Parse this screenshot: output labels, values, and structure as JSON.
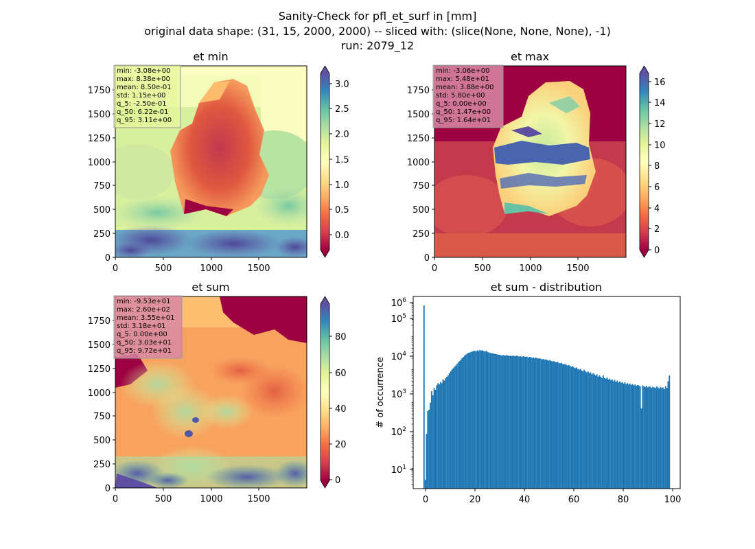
{
  "figure": {
    "title_lines": [
      "Sanity-Check for pfl_et_surf in [mm]",
      "original data shape: (31, 15, 2000, 2000) -- sliced with: (slice(None, None, None), -1)",
      "run: 2079_12"
    ]
  },
  "chart_data": [
    {
      "type": "heatmap",
      "title": "et min",
      "xlim": [
        0,
        2000
      ],
      "ylim": [
        0,
        2000
      ],
      "x_ticks": [
        "0",
        "500",
        "1000",
        "1500"
      ],
      "y_ticks": [
        "0",
        "250",
        "500",
        "750",
        "1000",
        "1250",
        "1500",
        "1750"
      ],
      "colormap": "Spectral",
      "colorbar_range": [
        -0.3,
        3.2
      ],
      "colorbar_ticks": [
        "0.0",
        "0.5",
        "1.0",
        "1.5",
        "2.0",
        "2.5",
        "3.0"
      ],
      "stats_box_color": "#e6f598",
      "stats": [
        "min: -3.08e+00",
        "max: 8.38e+00",
        "mean: 8.50e-01",
        "std: 1.15e+00",
        "q_5: -2.50e-01",
        "q_50: 6.22e-01",
        "q_95: 3.11e+00"
      ]
    },
    {
      "type": "heatmap",
      "title": "et max",
      "xlim": [
        0,
        2000
      ],
      "ylim": [
        0,
        2000
      ],
      "x_ticks": [
        "0",
        "500",
        "1000",
        "1500"
      ],
      "y_ticks": [
        "0",
        "250",
        "500",
        "750",
        "1000",
        "1250",
        "1500",
        "1750"
      ],
      "colormap": "Spectral",
      "colorbar_range": [
        0,
        16.8
      ],
      "colorbar_ticks": [
        "0",
        "2",
        "4",
        "6",
        "8",
        "10",
        "12",
        "14",
        "16"
      ],
      "stats_box_color": "#d88aa4",
      "stats": [
        "min: -3.06e+00",
        "max: 5.48e+01",
        "mean: 3.88e+00",
        "std: 5.80e+00",
        "q_5: 0.00e+00",
        "q_50: 1.47e+00",
        "q_95: 1.64e+01"
      ]
    },
    {
      "type": "heatmap",
      "title": "et sum",
      "xlim": [
        0,
        2000
      ],
      "ylim": [
        0,
        2000
      ],
      "x_ticks": [
        "0",
        "500",
        "1000",
        "1500"
      ],
      "y_ticks": [
        "0",
        "250",
        "500",
        "750",
        "1000",
        "1250",
        "1500",
        "1750"
      ],
      "colormap": "Spectral",
      "colorbar_range": [
        -3,
        99
      ],
      "colorbar_ticks": [
        "0",
        "20",
        "40",
        "60",
        "80"
      ],
      "stats_box_color": "#d88aa4",
      "stats": [
        "min: -9.53e+01",
        "max: 2.60e+02",
        "mean: 3.55e+01",
        "std: 3.18e+01",
        "q_5: 0.00e+00",
        "q_50: 3.03e+01",
        "q_95: 9.72e+01"
      ]
    },
    {
      "type": "bar",
      "title": "et sum - distribution",
      "ylabel": "# of occurrence",
      "yscale": "log",
      "xlim": [
        -4,
        101
      ],
      "ylim": [
        2.2,
        1500000
      ],
      "x_ticks": [
        "0",
        "20",
        "40",
        "60",
        "80",
        "100"
      ],
      "y_ticks": [
        "10^1",
        "10^2",
        "10^3",
        "10^4",
        "10^5",
        "10^6"
      ],
      "color": "#1f77b4",
      "bin_width": 0.5,
      "bins": [
        [
          0,
          800000
        ],
        [
          0.5,
          4
        ],
        [
          1,
          100
        ],
        [
          1.5,
          500
        ],
        [
          2,
          550
        ],
        [
          2.5,
          900
        ],
        [
          3,
          2000
        ],
        [
          3.5,
          1500
        ],
        [
          4,
          2500
        ],
        [
          4.5,
          2200
        ],
        [
          5,
          3000
        ],
        [
          5.5,
          3500
        ],
        [
          6,
          3200
        ],
        [
          6.5,
          3800
        ],
        [
          7,
          3500
        ],
        [
          7.5,
          4500
        ],
        [
          8,
          4200
        ],
        [
          8.5,
          5000
        ],
        [
          9,
          5500
        ],
        [
          9.5,
          6000
        ],
        [
          10,
          7000
        ],
        [
          10.5,
          8000
        ],
        [
          11,
          9000
        ],
        [
          11.5,
          10000
        ],
        [
          12,
          11000
        ],
        [
          12.5,
          12000
        ],
        [
          13,
          13500
        ],
        [
          13.5,
          15000
        ],
        [
          14,
          16500
        ],
        [
          14.5,
          18000
        ],
        [
          15,
          20000
        ],
        [
          15.5,
          22000
        ],
        [
          16,
          24000
        ],
        [
          16.5,
          26000
        ],
        [
          17,
          28000
        ],
        [
          17.5,
          29000
        ],
        [
          18,
          30000
        ],
        [
          18.5,
          31000
        ],
        [
          19,
          32000
        ],
        [
          19.5,
          33000
        ],
        [
          20,
          34000
        ],
        [
          20.5,
          32000
        ],
        [
          21,
          35000
        ],
        [
          21.5,
          33000
        ],
        [
          22,
          36000
        ],
        [
          22.5,
          34000
        ],
        [
          23,
          35000
        ],
        [
          23.5,
          33000
        ],
        [
          24,
          32000
        ],
        [
          24.5,
          34000
        ],
        [
          25,
          31000
        ],
        [
          25.5,
          30000
        ],
        [
          26,
          29000
        ],
        [
          26.5,
          28500
        ],
        [
          27,
          28000
        ],
        [
          27.5,
          27500
        ],
        [
          28,
          27000
        ],
        [
          28.5,
          26500
        ],
        [
          29,
          26000
        ],
        [
          29.5,
          25500
        ],
        [
          30,
          25000
        ],
        [
          30.5,
          24000
        ],
        [
          31,
          25000
        ],
        [
          31.5,
          24500
        ],
        [
          32,
          24000
        ],
        [
          32.5,
          25000
        ],
        [
          33,
          24000
        ],
        [
          33.5,
          23500
        ],
        [
          34,
          24000
        ],
        [
          34.5,
          23000
        ],
        [
          35,
          24000
        ],
        [
          35.5,
          23500
        ],
        [
          36,
          23000
        ],
        [
          36.5,
          24000
        ],
        [
          37,
          23000
        ],
        [
          37.5,
          22500
        ],
        [
          38,
          23000
        ],
        [
          38.5,
          22000
        ],
        [
          39,
          23000
        ],
        [
          39.5,
          22500
        ],
        [
          40,
          22000
        ],
        [
          40.5,
          22500
        ],
        [
          41,
          21000
        ],
        [
          41.5,
          22000
        ],
        [
          42,
          21500
        ],
        [
          42.5,
          20500
        ],
        [
          43,
          21000
        ],
        [
          43.5,
          20000
        ],
        [
          44,
          21000
        ],
        [
          44.5,
          20000
        ],
        [
          45,
          19500
        ],
        [
          45.5,
          20000
        ],
        [
          46,
          19000
        ],
        [
          46.5,
          18500
        ],
        [
          47,
          19000
        ],
        [
          47.5,
          18000
        ],
        [
          48,
          18500
        ],
        [
          48.5,
          17500
        ],
        [
          49,
          17000
        ],
        [
          49.5,
          17500
        ],
        [
          50,
          16500
        ],
        [
          50.5,
          16000
        ],
        [
          51,
          16500
        ],
        [
          51.5,
          15500
        ],
        [
          52,
          15000
        ],
        [
          52.5,
          15500
        ],
        [
          53,
          14500
        ],
        [
          53.5,
          14000
        ],
        [
          54,
          14500
        ],
        [
          54.5,
          13500
        ],
        [
          55,
          13000
        ],
        [
          55.5,
          13500
        ],
        [
          56,
          12500
        ],
        [
          56.5,
          12000
        ],
        [
          57,
          12500
        ],
        [
          57.5,
          11500
        ],
        [
          58,
          11000
        ],
        [
          58.5,
          11500
        ],
        [
          59,
          10500
        ],
        [
          59.5,
          10000
        ],
        [
          60,
          10500
        ],
        [
          60.5,
          9500
        ],
        [
          61,
          9000
        ],
        [
          61.5,
          9500
        ],
        [
          62,
          8500
        ],
        [
          62.5,
          8000
        ],
        [
          63,
          9000
        ],
        [
          63.5,
          8000
        ],
        [
          64,
          7500
        ],
        [
          64.5,
          8000
        ],
        [
          65,
          7000
        ],
        [
          65.5,
          7500
        ],
        [
          66,
          6500
        ],
        [
          66.5,
          7000
        ],
        [
          67,
          6500
        ],
        [
          67.5,
          6000
        ],
        [
          68,
          6500
        ],
        [
          68.5,
          5500
        ],
        [
          69,
          6000
        ],
        [
          69.5,
          5500
        ],
        [
          70,
          5000
        ],
        [
          70.5,
          6000
        ],
        [
          71,
          5000
        ],
        [
          71.5,
          4800
        ],
        [
          72,
          5200
        ],
        [
          72.5,
          4500
        ],
        [
          73,
          4800
        ],
        [
          73.5,
          4300
        ],
        [
          74,
          4500
        ],
        [
          74.5,
          4000
        ],
        [
          75,
          4400
        ],
        [
          75.5,
          3800
        ],
        [
          76,
          4200
        ],
        [
          76.5,
          3700
        ],
        [
          77,
          4000
        ],
        [
          77.5,
          3600
        ],
        [
          78,
          3800
        ],
        [
          78.5,
          3400
        ],
        [
          79,
          3700
        ],
        [
          79.5,
          3300
        ],
        [
          80,
          3500
        ],
        [
          80.5,
          3200
        ],
        [
          81,
          3400
        ],
        [
          81.5,
          3100
        ],
        [
          82,
          3300
        ],
        [
          82.5,
          3000
        ],
        [
          83,
          3200
        ],
        [
          83.5,
          2900
        ],
        [
          84,
          3100
        ],
        [
          84.5,
          3000
        ],
        [
          85,
          2800
        ],
        [
          85.5,
          600
        ],
        [
          86,
          3000
        ],
        [
          86.5,
          2800
        ],
        [
          87,
          2700
        ],
        [
          87.5,
          2900
        ],
        [
          88,
          2600
        ],
        [
          88.5,
          2800
        ],
        [
          89,
          2700
        ],
        [
          89.5,
          2500
        ],
        [
          90,
          2700
        ],
        [
          90.5,
          2600
        ],
        [
          91,
          2500
        ],
        [
          91.5,
          2800
        ],
        [
          92,
          2600
        ],
        [
          92.5,
          2400
        ],
        [
          93,
          2700
        ],
        [
          93.5,
          2500
        ],
        [
          94,
          2600
        ],
        [
          94.5,
          2300
        ],
        [
          95,
          2800
        ],
        [
          95.5,
          2500
        ],
        [
          96,
          4000
        ],
        [
          96.5,
          6000
        ]
      ]
    }
  ]
}
